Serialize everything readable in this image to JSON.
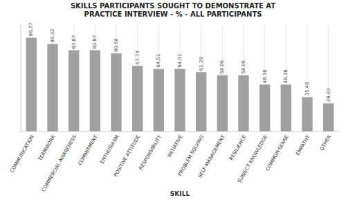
{
  "chart_data": {
    "type": "bar",
    "title": "SKILLS PARTICIPANTS SOUGHT TO DEMONSTRATE AT\nPRACTICE INTERVIEW - % - ALL PARTICIPANTS",
    "xlabel": "SKILL",
    "categories": [
      "COMMUNICATION",
      "TEAMWORK",
      "COMMERCIAL AWARENESS",
      "COMMITMENT",
      "ENTHUSIASM",
      "POSITIVE ATTITUDE",
      "RESPONSIBILITY",
      "INITIATIVE",
      "PROBLEM SOLVING",
      "SELF-MANAGEMENT",
      "RESILIENCE",
      "SUBJECT KNOWLEDGE",
      "COMMON SENSE",
      "EMPATHY",
      "OTHER"
    ],
    "values": [
      96.77,
      90.32,
      83.87,
      83.87,
      80.64,
      67.74,
      64.51,
      64.51,
      61.29,
      58.06,
      58.06,
      48.38,
      48.38,
      35.48,
      29.03
    ],
    "color": "#a0a0a0",
    "ylim": [
      0,
      110
    ],
    "grid": true,
    "data_labels": true,
    "tick_labels": "x"
  }
}
